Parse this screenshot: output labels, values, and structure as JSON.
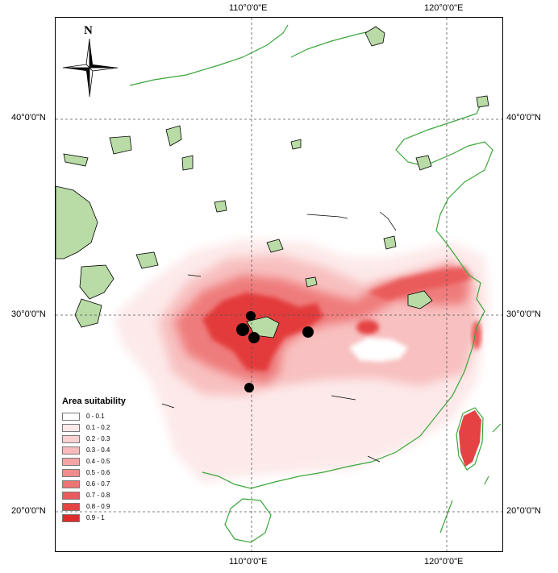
{
  "axes": {
    "top_labels": [
      "110°0'0\"E",
      "120°0'0\"E"
    ],
    "bottom_labels": [
      "110°0'0\"E",
      "120°0'0\"E"
    ],
    "left_labels": [
      "40°0'0\"N",
      "30°0'0\"N",
      "20°0'0\"N"
    ],
    "right_labels": [
      "40°0'0\"N",
      "30°0'0\"N",
      "20°0'0\"N"
    ]
  },
  "compass": {
    "north_label": "N"
  },
  "legend": {
    "title": "Area suitability",
    "classes": [
      {
        "label": "0 - 0.1",
        "color": "#ffffff"
      },
      {
        "label": "0.1 - 0.2",
        "color": "#fde9e9"
      },
      {
        "label": "0.2 - 0.3",
        "color": "#fbd2d2"
      },
      {
        "label": "0.3 - 0.4",
        "color": "#f8baba"
      },
      {
        "label": "0.4 - 0.5",
        "color": "#f5a3a3"
      },
      {
        "label": "0.5 - 0.6",
        "color": "#f28b8b"
      },
      {
        "label": "0.6 - 0.7",
        "color": "#ee7373"
      },
      {
        "label": "0.7 - 0.8",
        "color": "#ea5b5b"
      },
      {
        "label": "0.8 - 0.9",
        "color": "#e54343"
      },
      {
        "label": "0.9 - 1",
        "color": "#df2a2a"
      }
    ]
  },
  "colors": {
    "coastline": "#3aa63a",
    "water_body_fill": "#b9dba6",
    "gridline": "#555555",
    "occurrence_point": "#000000"
  }
}
